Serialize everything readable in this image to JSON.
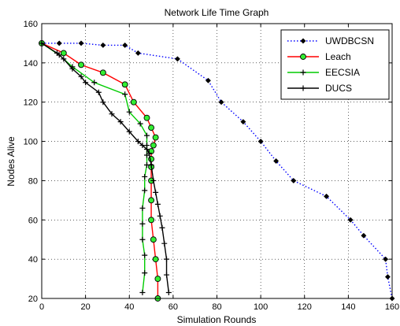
{
  "chart_data": {
    "type": "line",
    "title": "Network Life Time Graph",
    "xlabel": "Simulation Rounds",
    "ylabel": "Nodes Alive",
    "xlim": [
      0,
      160
    ],
    "ylim": [
      20,
      160
    ],
    "xticks": [
      0,
      20,
      40,
      60,
      80,
      100,
      120,
      140,
      160
    ],
    "yticks": [
      20,
      40,
      60,
      80,
      100,
      120,
      140,
      160
    ],
    "grid": true,
    "legend_position": "top-right",
    "series": [
      {
        "name": "UWDBCSN",
        "color": "#0000ff",
        "line_style": "dotted",
        "marker": "diamond",
        "points": [
          [
            0,
            150
          ],
          [
            8,
            150
          ],
          [
            18,
            150
          ],
          [
            28,
            149
          ],
          [
            38,
            149
          ],
          [
            44,
            145
          ],
          [
            62,
            142
          ],
          [
            76,
            131
          ],
          [
            82,
            120
          ],
          [
            92,
            110
          ],
          [
            100,
            100
          ],
          [
            107,
            90
          ],
          [
            115,
            80
          ],
          [
            130,
            72
          ],
          [
            141,
            60
          ],
          [
            147,
            52
          ],
          [
            157,
            40
          ],
          [
            158,
            31
          ],
          [
            160,
            20
          ]
        ]
      },
      {
        "name": "Leach",
        "color": "#ff0000",
        "line_style": "solid",
        "marker": "circle",
        "points": [
          [
            0,
            150
          ],
          [
            10,
            145
          ],
          [
            18,
            139
          ],
          [
            28,
            135
          ],
          [
            38,
            129
          ],
          [
            42,
            120
          ],
          [
            48,
            112
          ],
          [
            50,
            107
          ],
          [
            52,
            102
          ],
          [
            51,
            98
          ],
          [
            50,
            95
          ],
          [
            50,
            91
          ],
          [
            50,
            87
          ],
          [
            50,
            80
          ],
          [
            50,
            70
          ],
          [
            50,
            60
          ],
          [
            51,
            50
          ],
          [
            52,
            40
          ],
          [
            53,
            30
          ],
          [
            53,
            20
          ]
        ]
      },
      {
        "name": "EECSIA",
        "color": "#00cc00",
        "line_style": "solid",
        "marker": "plus",
        "points": [
          [
            0,
            150
          ],
          [
            8,
            144
          ],
          [
            14,
            138
          ],
          [
            24,
            130
          ],
          [
            38,
            124
          ],
          [
            40,
            115
          ],
          [
            45,
            109
          ],
          [
            48,
            103
          ],
          [
            48,
            98
          ],
          [
            48,
            93
          ],
          [
            48,
            88
          ],
          [
            47,
            82
          ],
          [
            47,
            75
          ],
          [
            46,
            66
          ],
          [
            46,
            58
          ],
          [
            46,
            50
          ],
          [
            47,
            42
          ],
          [
            47,
            33
          ],
          [
            46,
            23
          ]
        ]
      },
      {
        "name": "DUCS",
        "color": "#000000",
        "line_style": "solid",
        "marker": "plus",
        "points": [
          [
            0,
            150
          ],
          [
            7,
            145
          ],
          [
            10,
            142
          ],
          [
            14,
            137
          ],
          [
            18,
            133
          ],
          [
            20,
            130
          ],
          [
            26,
            125
          ],
          [
            28,
            120
          ],
          [
            32,
            114
          ],
          [
            36,
            110
          ],
          [
            40,
            105
          ],
          [
            44,
            100
          ],
          [
            46,
            98
          ],
          [
            48,
            96
          ],
          [
            49,
            94
          ],
          [
            50,
            88
          ],
          [
            51,
            80
          ],
          [
            52,
            74
          ],
          [
            53,
            68
          ],
          [
            54,
            62
          ],
          [
            55,
            56
          ],
          [
            56,
            48
          ],
          [
            57,
            40
          ],
          [
            57,
            32
          ],
          [
            58,
            23
          ]
        ]
      }
    ]
  }
}
